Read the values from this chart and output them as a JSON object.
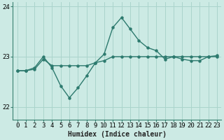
{
  "title": "",
  "xlabel": "Humidex (Indice chaleur)",
  "ylabel": "",
  "bg_color": "#cceae4",
  "grid_color": "#aad4cc",
  "line_color": "#2d7a6e",
  "x": [
    0,
    1,
    2,
    3,
    4,
    5,
    6,
    7,
    8,
    9,
    10,
    11,
    12,
    13,
    14,
    15,
    16,
    17,
    18,
    19,
    20,
    21,
    22,
    23
  ],
  "line1": [
    22.72,
    22.72,
    22.75,
    22.95,
    22.82,
    22.82,
    22.82,
    22.82,
    22.82,
    22.88,
    22.92,
    23.0,
    23.0,
    23.0,
    23.0,
    23.0,
    23.0,
    23.0,
    23.0,
    23.0,
    23.0,
    23.0,
    23.0,
    23.0
  ],
  "line2": [
    22.72,
    22.72,
    22.78,
    23.0,
    22.78,
    22.42,
    22.18,
    22.38,
    22.62,
    22.88,
    23.05,
    23.58,
    23.78,
    23.55,
    23.32,
    23.18,
    23.12,
    22.95,
    23.0,
    22.95,
    22.92,
    22.92,
    23.0,
    23.02
  ],
  "ylim": [
    21.75,
    24.08
  ],
  "xlim": [
    -0.5,
    23.5
  ],
  "yticks": [
    22,
    23,
    24
  ],
  "xticks": [
    0,
    1,
    2,
    3,
    4,
    5,
    6,
    7,
    8,
    9,
    10,
    11,
    12,
    13,
    14,
    15,
    16,
    17,
    18,
    19,
    20,
    21,
    22,
    23
  ],
  "xlabel_fontsize": 7,
  "tick_fontsize": 6.5,
  "linewidth": 1.0,
  "markersize": 2.2
}
